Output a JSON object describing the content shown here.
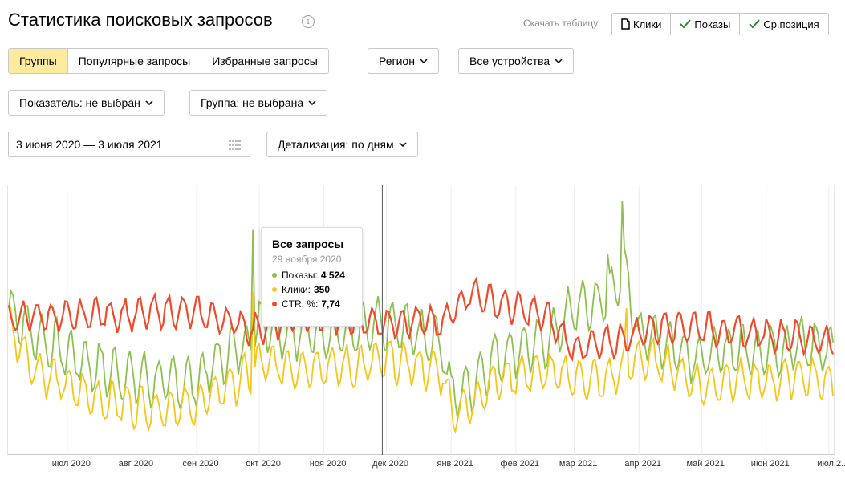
{
  "page": {
    "title": "Статистика поисковых запросов",
    "info_icon": "info-icon"
  },
  "header": {
    "download_label": "Скачать таблицу",
    "toggles": [
      {
        "label": "Клики",
        "icon": "document-icon",
        "selected": false
      },
      {
        "label": "Показы",
        "icon": "check-icon",
        "selected": true
      },
      {
        "label": "Ср.позиция",
        "icon": "check-icon",
        "selected": true
      }
    ]
  },
  "filters": {
    "tabs": [
      {
        "label": "Группы",
        "active": true
      },
      {
        "label": "Популярные запросы",
        "active": false
      },
      {
        "label": "Избранные запросы",
        "active": false
      }
    ],
    "region": "Регион",
    "devices": "Все устройства",
    "indicator": "Показатель: не выбран",
    "group": "Группа: не выбрана",
    "date_range": "3 июня 2020 — 3 июля 2021",
    "detail": "Детализация: по дням"
  },
  "tooltip": {
    "title": "Все запросы",
    "date": "29 ноября 2020",
    "rows": [
      {
        "label": "Показы:",
        "value": "4 524",
        "color": "#8cc04f"
      },
      {
        "label": "Клики:",
        "value": "350",
        "color": "#f5c61b"
      },
      {
        "label": "CTR, %:",
        "value": "7,74",
        "color": "#f04a2c"
      }
    ]
  },
  "chart_data": {
    "type": "line",
    "x_start": "2020-06-03",
    "x_end": "2021-07-03",
    "x_tick_labels": [
      "июл 2020",
      "авг 2020",
      "сен 2020",
      "окт 2020",
      "ноя 2020",
      "дек 2020",
      "янв 2021",
      "фев 2021",
      "мар 2021",
      "апр 2021",
      "май 2021",
      "июн 2021",
      "июл 2..."
    ],
    "grid": "vertical",
    "legend": "none",
    "colors": {
      "shows": "#8cc04f",
      "clicks": "#f5c61b",
      "ctr": "#f04a2c"
    },
    "series": [
      {
        "name": "Показы",
        "points": [
          [
            "2020-06-03",
            0.55
          ],
          [
            "2020-06-15",
            0.44
          ],
          [
            "2020-07-01",
            0.36
          ],
          [
            "2020-07-15",
            0.3
          ],
          [
            "2020-08-01",
            0.26
          ],
          [
            "2020-08-15",
            0.24
          ],
          [
            "2020-09-01",
            0.24
          ],
          [
            "2020-09-10",
            0.32
          ],
          [
            "2020-09-20",
            0.38
          ],
          [
            "2020-09-28",
            0.42
          ],
          [
            "2020-10-01",
            0.5
          ],
          [
            "2020-10-15",
            0.45
          ],
          [
            "2020-11-01",
            0.46
          ],
          [
            "2020-11-15",
            0.44
          ],
          [
            "2020-11-29",
            0.48
          ],
          [
            "2020-12-15",
            0.45
          ],
          [
            "2020-12-28",
            0.4
          ],
          [
            "2021-01-01",
            0.18
          ],
          [
            "2021-01-10",
            0.22
          ],
          [
            "2021-01-20",
            0.33
          ],
          [
            "2021-02-01",
            0.38
          ],
          [
            "2021-02-15",
            0.4
          ],
          [
            "2021-03-01",
            0.55
          ],
          [
            "2021-03-15",
            0.58
          ],
          [
            "2021-03-25",
            0.7
          ],
          [
            "2021-04-01",
            0.45
          ],
          [
            "2021-04-15",
            0.4
          ],
          [
            "2021-05-01",
            0.34
          ],
          [
            "2021-05-15",
            0.38
          ],
          [
            "2021-06-01",
            0.37
          ],
          [
            "2021-06-15",
            0.4
          ],
          [
            "2021-07-01",
            0.38
          ]
        ],
        "peaks": [
          [
            "2020-09-28",
            0.88
          ],
          [
            "2021-03-24",
            1.0
          ],
          [
            "2021-03-17",
            0.78
          ]
        ]
      },
      {
        "name": "Клики",
        "points": [
          [
            "2020-06-03",
            0.48
          ],
          [
            "2020-06-15",
            0.3
          ],
          [
            "2020-07-01",
            0.22
          ],
          [
            "2020-07-15",
            0.17
          ],
          [
            "2020-08-01",
            0.14
          ],
          [
            "2020-08-15",
            0.13
          ],
          [
            "2020-09-01",
            0.14
          ],
          [
            "2020-09-10",
            0.2
          ],
          [
            "2020-09-20",
            0.24
          ],
          [
            "2020-09-28",
            0.28
          ],
          [
            "2020-10-01",
            0.32
          ],
          [
            "2020-10-15",
            0.3
          ],
          [
            "2020-11-01",
            0.31
          ],
          [
            "2020-11-15",
            0.3
          ],
          [
            "2020-11-29",
            0.33
          ],
          [
            "2020-12-15",
            0.31
          ],
          [
            "2020-12-28",
            0.28
          ],
          [
            "2021-01-01",
            0.12
          ],
          [
            "2021-01-10",
            0.14
          ],
          [
            "2021-01-20",
            0.24
          ],
          [
            "2021-02-01",
            0.27
          ],
          [
            "2021-02-15",
            0.28
          ],
          [
            "2021-03-01",
            0.26
          ],
          [
            "2021-03-15",
            0.24
          ],
          [
            "2021-03-25",
            0.3
          ],
          [
            "2021-04-01",
            0.34
          ],
          [
            "2021-04-15",
            0.31
          ],
          [
            "2021-05-01",
            0.22
          ],
          [
            "2021-05-15",
            0.25
          ],
          [
            "2021-06-01",
            0.24
          ],
          [
            "2021-06-15",
            0.27
          ],
          [
            "2021-07-01",
            0.24
          ]
        ],
        "peaks": [
          [
            "2020-09-28",
            0.62
          ],
          [
            "2021-03-26",
            0.55
          ]
        ]
      },
      {
        "name": "CTR, %",
        "points": [
          [
            "2020-06-03",
            0.5
          ],
          [
            "2020-06-15",
            0.52
          ],
          [
            "2020-07-01",
            0.51
          ],
          [
            "2020-07-15",
            0.53
          ],
          [
            "2020-08-01",
            0.52
          ],
          [
            "2020-08-15",
            0.54
          ],
          [
            "2020-09-01",
            0.53
          ],
          [
            "2020-09-10",
            0.51
          ],
          [
            "2020-09-20",
            0.49
          ],
          [
            "2020-09-28",
            0.46
          ],
          [
            "2020-10-01",
            0.47
          ],
          [
            "2020-10-15",
            0.5
          ],
          [
            "2020-11-01",
            0.51
          ],
          [
            "2020-11-15",
            0.5
          ],
          [
            "2020-11-29",
            0.49
          ],
          [
            "2020-12-15",
            0.5
          ],
          [
            "2020-12-28",
            0.48
          ],
          [
            "2021-01-01",
            0.53
          ],
          [
            "2021-01-10",
            0.62
          ],
          [
            "2021-01-20",
            0.58
          ],
          [
            "2021-02-01",
            0.55
          ],
          [
            "2021-02-15",
            0.52
          ],
          [
            "2021-03-01",
            0.38
          ],
          [
            "2021-03-15",
            0.4
          ],
          [
            "2021-03-25",
            0.42
          ],
          [
            "2021-04-01",
            0.45
          ],
          [
            "2021-04-15",
            0.48
          ],
          [
            "2021-05-01",
            0.47
          ],
          [
            "2021-05-15",
            0.45
          ],
          [
            "2021-06-01",
            0.44
          ],
          [
            "2021-06-15",
            0.43
          ],
          [
            "2021-07-01",
            0.41
          ]
        ],
        "peaks": []
      }
    ],
    "cursor_date": "2020-11-29"
  }
}
